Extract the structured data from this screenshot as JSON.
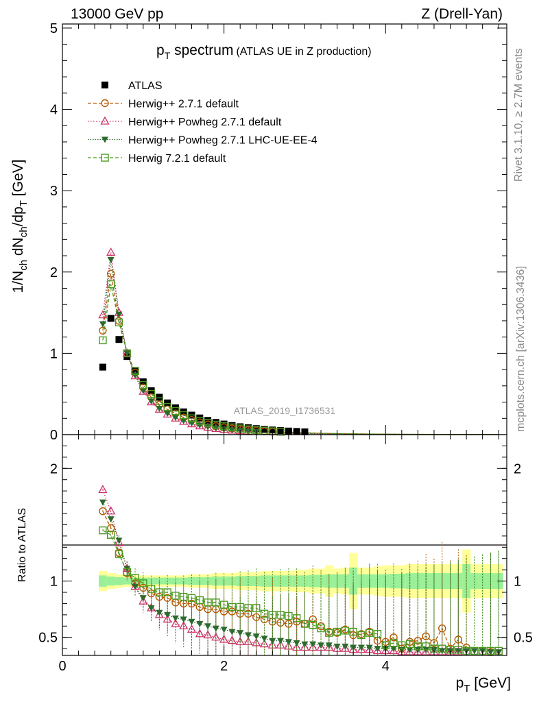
{
  "header": {
    "left": "13000 GeV pp",
    "right": "Z (Drell-Yan)"
  },
  "side_labels": {
    "rivet": "Rivet 3.1.10, ≥ 2.7M events",
    "mcplots": "mcplots.cern.ch [arXiv:1306.3436]"
  },
  "chart_data": [
    {
      "type": "line",
      "title": {
        "main": "p",
        "sub": "T",
        "rest": " spectrum",
        "paren": "(ATLAS UE in Z production)"
      },
      "watermark": "ATLAS_2019_I1736531",
      "ylabel": "1/N_ch dN_ch/dp_T [GeV]",
      "xlim": [
        0,
        5.5
      ],
      "ylim": [
        0,
        5.05
      ],
      "yticks": [
        "0",
        "1",
        "2",
        "3",
        "4",
        "5"
      ],
      "legend_position": "top-left",
      "legend": [
        "ATLAS",
        "Herwig++ 2.7.1 default",
        "Herwig++ Powheg 2.7.1 default",
        "Herwig++ Powheg 2.7.1 LHC-UE-EE-4",
        "Herwig 7.2.1 default"
      ],
      "x": [
        0.5,
        0.6,
        0.7,
        0.8,
        0.9,
        1.0,
        1.1,
        1.2,
        1.3,
        1.4,
        1.5,
        1.6,
        1.7,
        1.8,
        1.9,
        2.0,
        2.1,
        2.2,
        2.3,
        2.4,
        2.5,
        2.6,
        2.7,
        2.8,
        2.9,
        3.0,
        3.1,
        3.2,
        3.3,
        3.4,
        3.5,
        3.6,
        3.7,
        3.8,
        3.9,
        4.0,
        4.1,
        4.2,
        4.3,
        4.4,
        4.5,
        4.6,
        4.7,
        4.8,
        4.9,
        5.0,
        5.1,
        5.2,
        5.3,
        5.4
      ],
      "series": [
        {
          "name": "ATLAS",
          "color": "#000000",
          "marker": "square",
          "values": [
            0.83,
            1.43,
            1.17,
            0.96,
            0.79,
            0.65,
            0.54,
            0.46,
            0.39,
            0.33,
            0.28,
            0.24,
            0.205,
            0.175,
            0.15,
            0.13,
            0.112,
            0.097,
            0.085,
            0.074,
            0.065,
            0.057,
            0.05,
            0.044,
            0.039,
            0.034,
            0.03,
            0.027,
            0.024,
            0.021,
            0.019,
            0.017,
            0.015,
            0.014,
            0.012,
            0.011,
            0.01,
            0.009,
            0.0085,
            0.008,
            0.0075,
            0.007,
            0.0065,
            0.006,
            0.0055,
            0.005,
            0.0048,
            0.0045,
            0.0042,
            0.004
          ]
        },
        {
          "name": "Herwig++ 2.7.1 default",
          "color": "#b35900",
          "marker": "circle",
          "dash": "5,3",
          "values": [
            1.28,
            1.98,
            1.4,
            1.0,
            0.76,
            0.58,
            0.46,
            0.37,
            0.31,
            0.26,
            0.21,
            0.18,
            0.15,
            0.125,
            0.105,
            0.09,
            0.077,
            0.066,
            0.056,
            0.048,
            0.041,
            0.036,
            0.031,
            0.027,
            0.024,
            0.021,
            0.018,
            0.016,
            0.014,
            0.012,
            0.011,
            0.01,
            0.009,
            0.008,
            0.007,
            0.006,
            0.0055,
            0.005,
            0.0045,
            0.004,
            0.0037,
            0.0034,
            0.003,
            0.0028,
            0.0026,
            0.0024,
            0.0022,
            0.002,
            0.0019,
            0.0018
          ]
        },
        {
          "name": "Herwig++ Powheg 2.7.1 default",
          "color": "#cc3366",
          "marker": "triangle",
          "dash": "1.5,2.5",
          "values": [
            1.47,
            2.24,
            1.5,
            1.0,
            0.72,
            0.53,
            0.4,
            0.31,
            0.25,
            0.2,
            0.16,
            0.13,
            0.105,
            0.088,
            0.073,
            0.061,
            0.052,
            0.044,
            0.038,
            0.032,
            0.028,
            0.024,
            0.021,
            0.018,
            0.016,
            0.014,
            0.012,
            0.011,
            0.0095,
            0.0084,
            0.0074,
            0.0066,
            0.0059,
            0.0052,
            0.0047,
            0.0042,
            0.0038,
            0.0034,
            0.0031,
            0.0028,
            0.0026,
            0.0024,
            0.0022,
            0.002,
            0.0018,
            0.0017,
            0.0016,
            0.0015,
            0.0014,
            0.0013
          ]
        },
        {
          "name": "Herwig++ Powheg 2.7.1 LHC-UE-EE-4",
          "color": "#2d6a2d",
          "marker": "invtriangle",
          "dash": "1.5,2",
          "values": [
            1.36,
            2.15,
            1.48,
            1.0,
            0.73,
            0.54,
            0.41,
            0.32,
            0.26,
            0.21,
            0.17,
            0.14,
            0.115,
            0.095,
            0.079,
            0.066,
            0.056,
            0.048,
            0.041,
            0.035,
            0.03,
            0.026,
            0.023,
            0.02,
            0.017,
            0.015,
            0.013,
            0.012,
            0.01,
            0.009,
            0.008,
            0.007,
            0.0063,
            0.0056,
            0.005,
            0.0045,
            0.004,
            0.0036,
            0.0033,
            0.003,
            0.0027,
            0.0025,
            0.0023,
            0.0021,
            0.0019,
            0.0018,
            0.0017,
            0.0016,
            0.0015,
            0.0014
          ]
        },
        {
          "name": "Herwig 7.2.1 default",
          "color": "#4a9a1e",
          "marker": "opensquare",
          "dash": "5,3",
          "values": [
            1.16,
            1.85,
            1.38,
            1.0,
            0.78,
            0.61,
            0.5,
            0.41,
            0.34,
            0.29,
            0.24,
            0.2,
            0.17,
            0.145,
            0.122,
            0.104,
            0.089,
            0.076,
            0.065,
            0.056,
            0.048,
            0.041,
            0.036,
            0.031,
            0.027,
            0.024,
            0.021,
            0.018,
            0.016,
            0.014,
            0.012,
            0.011,
            0.0095,
            0.0085,
            0.0075,
            0.0067,
            0.006,
            0.0054,
            0.0048,
            0.0043,
            0.0039,
            0.0035,
            0.0032,
            0.0029,
            0.0027,
            0.0025,
            0.0023,
            0.0021,
            0.0019,
            0.0018
          ]
        }
      ]
    },
    {
      "type": "line",
      "ylabel": "Ratio to ATLAS",
      "xlabel": "p_T [GeV]",
      "xlim": [
        0,
        5.5
      ],
      "ylim": [
        0.34,
        2.3
      ],
      "xticks": [
        "0",
        "2",
        "4"
      ],
      "yticks": [
        "0.5",
        "1",
        "2"
      ],
      "reference_line": 1,
      "x": [
        0.5,
        0.6,
        0.7,
        0.8,
        0.9,
        1.0,
        1.1,
        1.2,
        1.3,
        1.4,
        1.5,
        1.6,
        1.7,
        1.8,
        1.9,
        2.0,
        2.1,
        2.2,
        2.3,
        2.4,
        2.5,
        2.6,
        2.7,
        2.8,
        2.9,
        3.0,
        3.1,
        3.2,
        3.3,
        3.4,
        3.5,
        3.6,
        3.7,
        3.8,
        3.9,
        4.0,
        4.1,
        4.2,
        4.3,
        4.4,
        4.5,
        4.6,
        4.7,
        4.8,
        4.9,
        5.0,
        5.1,
        5.2,
        5.3,
        5.4
      ],
      "band_stat_half_width": [
        0.05,
        0.04,
        0.035,
        0.03,
        0.03,
        0.03,
        0.03,
        0.03,
        0.03,
        0.03,
        0.03,
        0.035,
        0.035,
        0.035,
        0.04,
        0.04,
        0.04,
        0.045,
        0.045,
        0.045,
        0.05,
        0.05,
        0.05,
        0.05,
        0.05,
        0.05,
        0.055,
        0.055,
        0.06,
        0.06,
        0.06,
        0.12,
        0.06,
        0.06,
        0.06,
        0.06,
        0.065,
        0.065,
        0.07,
        0.07,
        0.07,
        0.07,
        0.07,
        0.07,
        0.07,
        0.15,
        0.07,
        0.07,
        0.07,
        0.07
      ],
      "band_total_half_width": [
        0.09,
        0.07,
        0.06,
        0.05,
        0.05,
        0.05,
        0.05,
        0.05,
        0.05,
        0.05,
        0.05,
        0.06,
        0.06,
        0.06,
        0.07,
        0.07,
        0.07,
        0.08,
        0.08,
        0.08,
        0.09,
        0.09,
        0.09,
        0.09,
        0.1,
        0.1,
        0.11,
        0.11,
        0.14,
        0.11,
        0.12,
        0.25,
        0.12,
        0.12,
        0.13,
        0.14,
        0.14,
        0.14,
        0.15,
        0.15,
        0.15,
        0.15,
        0.15,
        0.15,
        0.15,
        0.28,
        0.15,
        0.15,
        0.15,
        0.15
      ],
      "series": [
        {
          "name": "Herwig++ 2.7.1 default",
          "color": "#b35900",
          "marker": "circle",
          "dash": "5,3",
          "values": [
            1.62,
            1.47,
            1.25,
            1.07,
            0.98,
            0.94,
            0.89,
            0.86,
            0.85,
            0.81,
            0.8,
            0.8,
            0.77,
            0.75,
            0.75,
            0.73,
            0.73,
            0.71,
            0.71,
            0.68,
            0.66,
            0.64,
            0.63,
            0.62,
            0.64,
            0.62,
            0.66,
            0.6,
            0.55,
            0.54,
            0.57,
            0.52,
            0.53,
            0.55,
            0.47,
            0.46,
            0.5,
            0.4,
            0.46,
            0.47,
            0.51,
            0.45,
            0.58,
            0.4,
            0.48,
            0.41,
            null,
            null,
            0.37,
            null
          ]
        },
        {
          "name": "Herwig++ Powheg 2.7.1 default",
          "color": "#cc3366",
          "marker": "triangle",
          "dash": "1.5,2.5",
          "values": [
            1.81,
            1.62,
            1.34,
            1.11,
            0.95,
            0.82,
            0.76,
            0.7,
            0.66,
            0.62,
            0.6,
            0.57,
            0.53,
            0.52,
            0.5,
            0.48,
            0.47,
            0.46,
            0.46,
            0.45,
            0.44,
            0.43,
            0.43,
            0.42,
            0.41,
            0.41,
            0.41,
            0.41,
            0.41,
            0.4,
            0.4,
            0.39,
            0.39,
            0.39,
            0.38,
            0.38,
            0.38,
            0.37,
            0.37,
            0.37,
            0.37,
            0.37,
            0.37,
            0.37,
            0.37,
            0.36,
            0.36,
            0.36,
            0.36,
            0.36
          ]
        },
        {
          "name": "Herwig++ Powheg 2.7.1 LHC-UE-EE-4",
          "color": "#2d6a2d",
          "marker": "invtriangle",
          "dash": "1.5,2",
          "values": [
            1.7,
            1.55,
            1.36,
            1.11,
            0.95,
            0.85,
            0.76,
            0.72,
            0.7,
            0.67,
            0.66,
            0.64,
            0.62,
            0.6,
            0.58,
            0.57,
            0.55,
            0.54,
            0.52,
            0.51,
            0.49,
            0.47,
            0.47,
            0.46,
            0.45,
            0.44,
            0.44,
            0.43,
            0.43,
            0.42,
            0.42,
            0.41,
            0.41,
            0.41,
            0.4,
            0.4,
            0.4,
            0.39,
            0.39,
            0.39,
            0.39,
            0.39,
            0.38,
            0.38,
            0.38,
            0.38,
            0.38,
            0.38,
            0.37,
            0.37
          ]
        },
        {
          "name": "Herwig 7.2.1 default",
          "color": "#4a9a1e",
          "marker": "opensquare",
          "dash": "5,3",
          "values": [
            1.45,
            1.41,
            1.24,
            1.08,
            1.03,
            0.98,
            0.93,
            0.9,
            0.9,
            0.87,
            0.86,
            0.85,
            0.83,
            0.81,
            0.81,
            0.79,
            0.77,
            0.77,
            0.76,
            0.76,
            0.71,
            0.7,
            0.7,
            0.69,
            0.67,
            0.62,
            0.61,
            0.58,
            0.54,
            0.55,
            0.56,
            0.55,
            0.52,
            0.54,
            0.53,
            0.43,
            0.45,
            0.43,
            0.44,
            0.42,
            0.42,
            0.4,
            0.4,
            0.39,
            0.39,
            0.38,
            0.38,
            0.38,
            0.38,
            0.38
          ]
        }
      ]
    }
  ]
}
